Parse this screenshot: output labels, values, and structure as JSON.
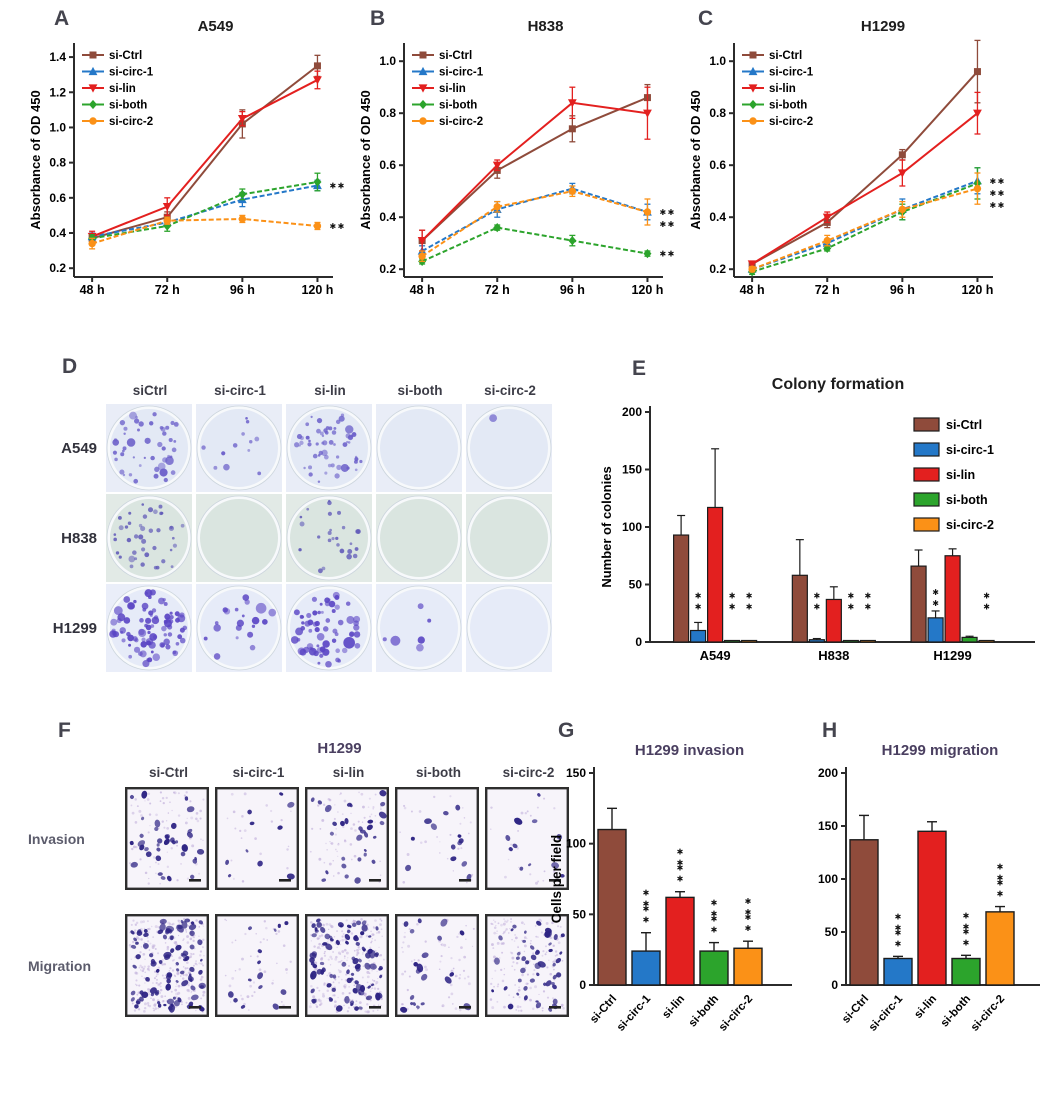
{
  "palette": {
    "si-Ctrl": "#8f4b3b",
    "si-circ-1": "#2478c8",
    "si-lin": "#e3201f",
    "si-both": "#2ca42c",
    "si-circ-2": "#fb9117",
    "axis": "#2b2b2b",
    "sig": "#111111",
    "black_title": "#1c1c1c",
    "purple_title": "#4a3f60"
  },
  "chart_data": {
    "A": {
      "type": "line",
      "panel_letter": "A",
      "title": "A549",
      "ylabel": "Absorbance of OD 450",
      "ylim": [
        0.15,
        1.48
      ],
      "yticks": [
        0.2,
        0.4,
        0.6,
        0.8,
        1.0,
        1.2,
        1.4
      ],
      "x_labels": [
        "48 h",
        "72 h",
        "96 h",
        "120 h"
      ],
      "legend_position": "upper-left",
      "series": [
        {
          "name": "si-Ctrl",
          "marker": "square",
          "dashed": false,
          "values": [
            0.37,
            0.49,
            1.02,
            1.35
          ],
          "err": [
            0.02,
            0.03,
            0.08,
            0.06
          ]
        },
        {
          "name": "si-circ-1",
          "marker": "triangle-up",
          "dashed": true,
          "values": [
            0.38,
            0.46,
            0.59,
            0.67
          ],
          "err": [
            0.02,
            0.02,
            0.04,
            0.03
          ],
          "sig": "**"
        },
        {
          "name": "si-lin",
          "marker": "triangle-down",
          "dashed": false,
          "values": [
            0.38,
            0.55,
            1.05,
            1.27
          ],
          "err": [
            0.03,
            0.05,
            0.04,
            0.05
          ]
        },
        {
          "name": "si-both",
          "marker": "diamond",
          "dashed": true,
          "values": [
            0.37,
            0.44,
            0.62,
            0.69
          ],
          "err": [
            0.02,
            0.03,
            0.03,
            0.05
          ]
        },
        {
          "name": "si-circ-2",
          "marker": "circle",
          "dashed": true,
          "values": [
            0.34,
            0.47,
            0.48,
            0.44
          ],
          "err": [
            0.03,
            0.02,
            0.02,
            0.02
          ],
          "sig": "**"
        }
      ]
    },
    "B": {
      "type": "line",
      "panel_letter": "B",
      "title": "H838",
      "ylabel": "Absorbance of OD 450",
      "ylim": [
        0.17,
        1.07
      ],
      "yticks": [
        0.2,
        0.4,
        0.6,
        0.8,
        1.0
      ],
      "x_labels": [
        "48 h",
        "72 h",
        "96 h",
        "120 h"
      ],
      "legend_position": "upper-left",
      "series": [
        {
          "name": "si-Ctrl",
          "marker": "square",
          "dashed": false,
          "values": [
            0.31,
            0.58,
            0.74,
            0.86
          ],
          "err": [
            0.04,
            0.03,
            0.05,
            0.05
          ]
        },
        {
          "name": "si-circ-1",
          "marker": "triangle-up",
          "dashed": true,
          "values": [
            0.27,
            0.43,
            0.51,
            0.42
          ],
          "err": [
            0.02,
            0.03,
            0.02,
            0.03
          ],
          "sig": "**"
        },
        {
          "name": "si-lin",
          "marker": "triangle-down",
          "dashed": false,
          "values": [
            0.31,
            0.6,
            0.84,
            0.8
          ],
          "err": [
            0.04,
            0.02,
            0.06,
            0.1
          ]
        },
        {
          "name": "si-both",
          "marker": "diamond",
          "dashed": true,
          "values": [
            0.23,
            0.36,
            0.31,
            0.26
          ],
          "err": [
            0.01,
            0.01,
            0.02,
            0.01
          ],
          "sig": "**"
        },
        {
          "name": "si-circ-2",
          "marker": "circle",
          "dashed": true,
          "values": [
            0.25,
            0.44,
            0.5,
            0.42
          ],
          "err": [
            0.02,
            0.02,
            0.02,
            0.05
          ],
          "sig": "**"
        }
      ]
    },
    "C": {
      "type": "line",
      "panel_letter": "C",
      "title": "H1299",
      "ylabel": "Absorbance of OD 450",
      "ylim": [
        0.17,
        1.07
      ],
      "yticks": [
        0.2,
        0.4,
        0.6,
        0.8,
        1.0
      ],
      "x_labels": [
        "48 h",
        "72 h",
        "96 h",
        "120 h"
      ],
      "legend_position": "upper-left",
      "series": [
        {
          "name": "si-Ctrl",
          "marker": "square",
          "dashed": false,
          "values": [
            0.22,
            0.38,
            0.64,
            0.96
          ],
          "err": [
            0.01,
            0.02,
            0.02,
            0.12
          ]
        },
        {
          "name": "si-circ-1",
          "marker": "triangle-up",
          "dashed": true,
          "values": [
            0.2,
            0.3,
            0.43,
            0.54
          ],
          "err": [
            0.01,
            0.01,
            0.04,
            0.05
          ],
          "sig": "**"
        },
        {
          "name": "si-lin",
          "marker": "triangle-down",
          "dashed": false,
          "values": [
            0.22,
            0.4,
            0.57,
            0.8
          ],
          "err": [
            0.01,
            0.02,
            0.05,
            0.08
          ]
        },
        {
          "name": "si-both",
          "marker": "diamond",
          "dashed": true,
          "values": [
            0.19,
            0.28,
            0.42,
            0.53
          ],
          "err": [
            0.01,
            0.01,
            0.03,
            0.06
          ],
          "sig": "**"
        },
        {
          "name": "si-circ-2",
          "marker": "circle",
          "dashed": true,
          "values": [
            0.2,
            0.31,
            0.43,
            0.51
          ],
          "err": [
            0.01,
            0.02,
            0.03,
            0.06
          ],
          "sig": "**"
        }
      ]
    },
    "E": {
      "type": "grouped-bar",
      "panel_letter": "E",
      "title": "Colony formation",
      "ylabel": "Number of colonies",
      "ylim": [
        0,
        200
      ],
      "yticks": [
        0,
        50,
        100,
        150,
        200
      ],
      "categories": [
        "A549",
        "H838",
        "H1299"
      ],
      "legend_position": "upper-right",
      "series": [
        {
          "name": "si-Ctrl",
          "values": [
            93,
            58,
            66
          ],
          "err": [
            17,
            31,
            14
          ],
          "sig": [
            "",
            "",
            ""
          ]
        },
        {
          "name": "si-circ-1",
          "values": [
            10,
            2,
            21
          ],
          "err": [
            7,
            1,
            6
          ],
          "sig": [
            "**",
            "**",
            "**"
          ]
        },
        {
          "name": "si-lin",
          "values": [
            117,
            37,
            75
          ],
          "err": [
            51,
            11,
            6
          ],
          "sig": [
            "",
            "",
            ""
          ]
        },
        {
          "name": "si-both",
          "values": [
            1,
            1,
            4
          ],
          "err": [
            0,
            0,
            1
          ],
          "sig": [
            "**",
            "**",
            ""
          ]
        },
        {
          "name": "si-circ-2",
          "values": [
            1,
            1,
            1
          ],
          "err": [
            0,
            0,
            0
          ],
          "sig": [
            "**",
            "**",
            "**"
          ]
        }
      ]
    },
    "G": {
      "type": "bar",
      "panel_letter": "G",
      "title": "H1299 invasion",
      "ylabel": "Cells per field",
      "ylim": [
        0,
        150
      ],
      "yticks": [
        0,
        50,
        100,
        150
      ],
      "categories": [
        "si-Ctrl",
        "si-circ-1",
        "si-lin",
        "si-both",
        "si-circ-2"
      ],
      "values": [
        110,
        24,
        62,
        24,
        26
      ],
      "err": [
        15,
        13,
        4,
        6,
        5
      ],
      "sig": [
        "",
        "**",
        "**",
        "**",
        "**"
      ]
    },
    "H": {
      "type": "bar",
      "panel_letter": "H",
      "title": "H1299 migration",
      "ylabel": "",
      "ylim": [
        0,
        200
      ],
      "yticks": [
        0,
        50,
        100,
        150,
        200
      ],
      "categories": [
        "si-Ctrl",
        "si-circ-1",
        "si-lin",
        "si-both",
        "si-circ-2"
      ],
      "values": [
        137,
        25,
        145,
        25,
        69
      ],
      "err": [
        23,
        2,
        9,
        3,
        5
      ],
      "sig": [
        "",
        "**",
        "",
        "**",
        "**"
      ]
    }
  },
  "panel_D": {
    "letter": "D",
    "col_labels": [
      "siCtrl",
      "si-circ-1",
      "si-lin",
      "si-both",
      "si-circ-2"
    ],
    "rows": [
      {
        "label": "A549",
        "photo_bg": "#e9edf7",
        "dish_bg": "#e3e9f5",
        "colony_color": "#6a5ec9",
        "dot_r": [
          1.1,
          2.7
        ],
        "counts": [
          48,
          12,
          60,
          0,
          1
        ]
      },
      {
        "label": "H838",
        "photo_bg": "#e2eae6",
        "dish_bg": "#dae5e0",
        "colony_color": "#6059b8",
        "dot_r": [
          1.2,
          2.6
        ],
        "counts": [
          42,
          0,
          26,
          0,
          0
        ]
      },
      {
        "label": "H1299",
        "photo_bg": "#eaeef9",
        "dish_bg": "#e6ebf8",
        "colony_color": "#5a45c4",
        "dot_r": [
          1.4,
          4.0
        ],
        "counts": [
          85,
          20,
          65,
          6,
          0
        ]
      }
    ]
  },
  "panel_F": {
    "letter": "F",
    "title": "H1299",
    "col_labels": [
      "si-Ctrl",
      "si-circ-1",
      "si-lin",
      "si-both",
      "si-circ-2"
    ],
    "cell_color": "#2e2484",
    "speckle_color": "#c3b2dc",
    "bg": "#f7f4fa",
    "rows": [
      {
        "label": "Invasion",
        "counts": [
          36,
          10,
          30,
          13,
          11
        ],
        "speckle_mult": 2.2
      },
      {
        "label": "Migration",
        "counts": [
          95,
          14,
          88,
          20,
          48
        ],
        "speckle_mult": 3.2
      }
    ]
  }
}
